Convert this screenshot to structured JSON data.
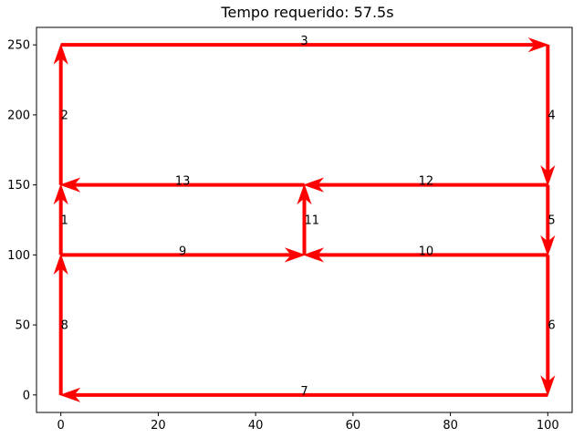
{
  "chart_data": {
    "type": "line",
    "title": "Tempo requerido: 57.5s",
    "xlabel": "",
    "ylabel": "",
    "xlim": [
      -5,
      105
    ],
    "ylim": [
      -12.5,
      262.5
    ],
    "xticks": [
      0,
      20,
      40,
      60,
      80,
      100
    ],
    "yticks": [
      0,
      50,
      100,
      150,
      200,
      250
    ],
    "grid": false,
    "segments": [
      {
        "label": "1",
        "from": [
          0,
          100
        ],
        "to": [
          0,
          150
        ]
      },
      {
        "label": "2",
        "from": [
          0,
          150
        ],
        "to": [
          0,
          250
        ]
      },
      {
        "label": "3",
        "from": [
          0,
          250
        ],
        "to": [
          100,
          250
        ]
      },
      {
        "label": "4",
        "from": [
          100,
          250
        ],
        "to": [
          100,
          150
        ]
      },
      {
        "label": "5",
        "from": [
          100,
          150
        ],
        "to": [
          100,
          100
        ]
      },
      {
        "label": "6",
        "from": [
          100,
          100
        ],
        "to": [
          100,
          0
        ]
      },
      {
        "label": "7",
        "from": [
          100,
          0
        ],
        "to": [
          0,
          0
        ]
      },
      {
        "label": "8",
        "from": [
          0,
          0
        ],
        "to": [
          0,
          100
        ]
      },
      {
        "label": "9",
        "from": [
          0,
          100
        ],
        "to": [
          50,
          100
        ]
      },
      {
        "label": "10",
        "from": [
          100,
          100
        ],
        "to": [
          50,
          100
        ]
      },
      {
        "label": "11",
        "from": [
          50,
          100
        ],
        "to": [
          50,
          150
        ]
      },
      {
        "label": "12",
        "from": [
          100,
          150
        ],
        "to": [
          50,
          150
        ]
      },
      {
        "label": "13",
        "from": [
          50,
          150
        ],
        "to": [
          0,
          150
        ]
      }
    ],
    "colors": {
      "arrow": "#ff0000"
    }
  }
}
